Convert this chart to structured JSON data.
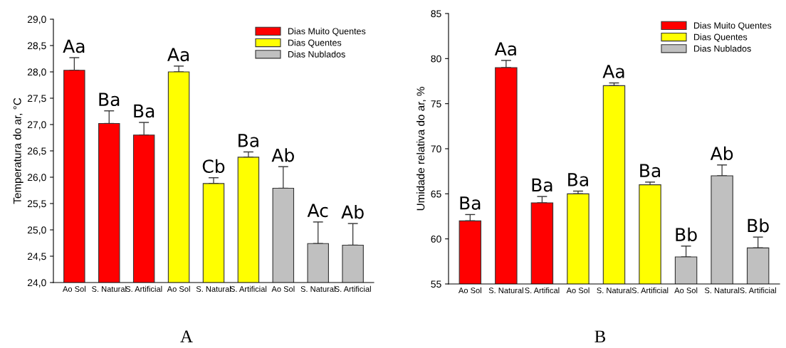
{
  "chart_data": [
    {
      "type": "bar",
      "ylabel": "Temperatura do ar, °C",
      "categories": [
        "Ao Sol",
        "S. Natural",
        "S. Artificial",
        "Ao Sol",
        "S. Natural",
        "S. Artificial",
        "Ao Sol",
        "S. Natural",
        "S. Artificial"
      ],
      "ylim": [
        24,
        29
      ],
      "yticks": [
        {
          "value": 24,
          "label": "24,0"
        },
        {
          "value": 24.5,
          "label": "24,5"
        },
        {
          "value": 25,
          "label": "25,0"
        },
        {
          "value": 25.5,
          "label": "25,5"
        },
        {
          "value": 26,
          "label": "26,0"
        },
        {
          "value": 26.5,
          "label": "26,5"
        },
        {
          "value": 27,
          "label": "27,0"
        },
        {
          "value": 27.5,
          "label": "27,5"
        },
        {
          "value": 28,
          "label": "28,0"
        },
        {
          "value": 28.5,
          "label": "28,5"
        },
        {
          "value": 29,
          "label": "29,0"
        }
      ],
      "series": [
        {
          "name": "Dias Muito Quentes",
          "color": "#ff0000",
          "values": [
            28.03,
            27.02,
            26.8,
            null,
            null,
            null,
            null,
            null,
            null
          ],
          "errors": [
            [
              28.03,
              28.27
            ],
            [
              27.02,
              27.26
            ],
            [
              26.8,
              27.04
            ],
            null,
            null,
            null,
            null,
            null,
            null
          ],
          "value_labels": [
            "Aa",
            "Ba",
            "Ba",
            null,
            null,
            null,
            null,
            null,
            null
          ]
        },
        {
          "name": "Dias Quentes",
          "color": "#ffff00",
          "values": [
            null,
            null,
            null,
            28.0,
            25.88,
            26.38,
            null,
            null,
            null
          ],
          "errors": [
            null,
            null,
            null,
            [
              28.0,
              28.11
            ],
            [
              25.88,
              25.99
            ],
            [
              26.38,
              26.48
            ],
            null,
            null,
            null
          ],
          "value_labels": [
            null,
            null,
            null,
            "Aa",
            "Cb",
            "Ba",
            null,
            null,
            null
          ]
        },
        {
          "name": "Dias Nublados",
          "color": "#c0c0c0",
          "values": [
            null,
            null,
            null,
            null,
            null,
            null,
            25.79,
            24.74,
            24.71
          ],
          "errors": [
            null,
            null,
            null,
            null,
            null,
            null,
            [
              25.79,
              26.2
            ],
            [
              24.74,
              25.15
            ],
            [
              24.71,
              25.12
            ]
          ],
          "value_labels": [
            null,
            null,
            null,
            null,
            null,
            null,
            "Ab",
            "Ac",
            "Ab"
          ]
        }
      ],
      "legend": "top right",
      "grid": false,
      "annotations": [
        "A"
      ]
    },
    {
      "type": "bar",
      "ylabel": "Umidade relativa do ar, %",
      "categories": [
        "Ao Sol",
        "S. Natural",
        "S. Artifical",
        "Ao Sol",
        "S. Natural",
        "S. Artificial",
        "Ao Sol",
        "S. Natural",
        "S. Artificial"
      ],
      "ylim": [
        55,
        85
      ],
      "yticks": [
        55,
        60,
        65,
        70,
        75,
        80,
        85
      ],
      "series": [
        {
          "name": "Dias Muito Quentes",
          "color": "#ff0000",
          "values": [
            62,
            79,
            64,
            null,
            null,
            null,
            null,
            null,
            null
          ],
          "errors": [
            [
              62,
              62.7
            ],
            [
              79,
              79.8
            ],
            [
              64,
              64.7
            ],
            null,
            null,
            null,
            null,
            null,
            null
          ],
          "value_labels": [
            "Ba",
            "Aa",
            "Ba",
            null,
            null,
            null,
            null,
            null,
            null
          ]
        },
        {
          "name": "Dias Quentes",
          "color": "#ffff00",
          "values": [
            null,
            null,
            null,
            65,
            77,
            66,
            null,
            null,
            null
          ],
          "errors": [
            null,
            null,
            null,
            [
              65,
              65.3
            ],
            [
              77,
              77.3
            ],
            [
              66,
              66.3
            ],
            null,
            null,
            null
          ],
          "value_labels": [
            null,
            null,
            null,
            "Ba",
            "Aa",
            "Ba",
            null,
            null,
            null
          ]
        },
        {
          "name": "Dias Nublados",
          "color": "#c0c0c0",
          "values": [
            null,
            null,
            null,
            null,
            null,
            null,
            58,
            67,
            59
          ],
          "errors": [
            null,
            null,
            null,
            null,
            null,
            null,
            [
              58,
              59.2
            ],
            [
              67,
              68.2
            ],
            [
              59,
              60.2
            ]
          ],
          "value_labels": [
            null,
            null,
            null,
            null,
            null,
            null,
            "Bb",
            "Ab",
            "Bb"
          ]
        }
      ],
      "legend": "top right",
      "grid": false,
      "annotations": [
        "B"
      ]
    }
  ]
}
